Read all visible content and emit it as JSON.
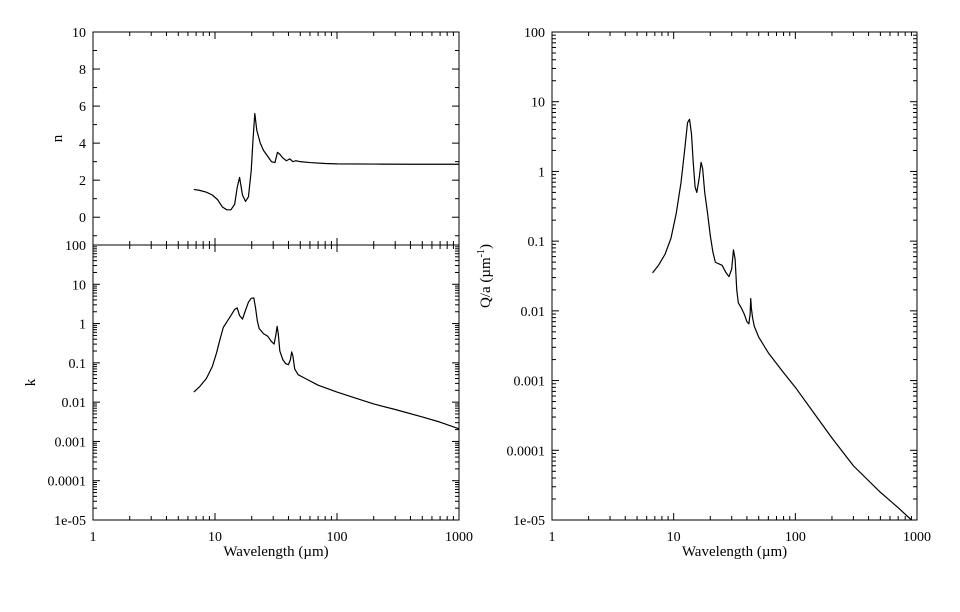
{
  "chart_data": [
    {
      "id": "n",
      "type": "line",
      "panel": "top-left",
      "title": "",
      "xlabel": "",
      "ylabel": "n",
      "xscale": "log",
      "yscale": "linear",
      "xlim": [
        1,
        1000
      ],
      "ylim": [
        -1.5,
        10
      ],
      "xticks": [
        1,
        10,
        100,
        1000
      ],
      "xtick_labels": [
        "",
        "",
        "",
        ""
      ],
      "yticks": [
        0,
        2,
        4,
        6,
        8,
        10
      ],
      "ytick_labels": [
        "0",
        "2",
        "4",
        "6",
        "8",
        "10"
      ],
      "grid": false,
      "series": [
        {
          "x": [
            6.7,
            7.5,
            8.5,
            9.5,
            10.5,
            11.5,
            12.5,
            13.5,
            14.5,
            15.2,
            15.9,
            16.8,
            17.8,
            18.8,
            19.8,
            20.5,
            21.2,
            22.0,
            23.5,
            25,
            27,
            29,
            31,
            32.5,
            34,
            36,
            38.5,
            41,
            43.5,
            46,
            50,
            60,
            80,
            100,
            200,
            400,
            1000
          ],
          "y": [
            1.5,
            1.45,
            1.35,
            1.2,
            0.95,
            0.55,
            0.4,
            0.4,
            0.7,
            1.6,
            2.15,
            1.2,
            0.85,
            1.1,
            2.5,
            4.2,
            5.6,
            4.7,
            4.0,
            3.6,
            3.3,
            3.0,
            2.95,
            3.5,
            3.4,
            3.2,
            3.05,
            3.15,
            3.0,
            3.05,
            3.0,
            2.95,
            2.9,
            2.88,
            2.87,
            2.86,
            2.86
          ]
        }
      ]
    },
    {
      "id": "k",
      "type": "line",
      "panel": "bottom-left",
      "title": "",
      "xlabel": "Wavelength (µm)",
      "ylabel": "k",
      "xscale": "log",
      "yscale": "log",
      "xlim": [
        1,
        1000
      ],
      "ylim": [
        1e-05,
        100
      ],
      "xticks": [
        1,
        10,
        100,
        1000
      ],
      "xtick_labels": [
        "1",
        "10",
        "100",
        "1000"
      ],
      "yticks": [
        1e-05,
        0.0001,
        0.001,
        0.01,
        0.1,
        1,
        10,
        100
      ],
      "ytick_labels": [
        "1e-05",
        "0.0001",
        "0.001",
        "0.01",
        "0.1",
        "1",
        "10",
        "100"
      ],
      "grid": false,
      "series": [
        {
          "x": [
            6.7,
            7.5,
            8.5,
            9.5,
            10.3,
            11.0,
            11.7,
            12.5,
            13.5,
            14.5,
            15.2,
            15.9,
            16.8,
            17.8,
            18.8,
            19.8,
            20.8,
            21.5,
            22.2,
            23,
            25,
            27,
            29,
            30.5,
            31.5,
            32.3,
            33,
            34,
            36,
            38,
            40,
            41.5,
            42.5,
            43.5,
            45,
            48,
            55,
            70,
            100,
            150,
            200,
            300,
            500,
            700,
            1000
          ],
          "y": [
            0.018,
            0.025,
            0.04,
            0.08,
            0.18,
            0.4,
            0.8,
            1.1,
            1.6,
            2.3,
            2.5,
            1.6,
            1.3,
            2.2,
            3.5,
            4.4,
            4.5,
            2.5,
            1.2,
            0.75,
            0.55,
            0.48,
            0.35,
            0.3,
            0.5,
            0.85,
            0.55,
            0.2,
            0.12,
            0.095,
            0.09,
            0.12,
            0.19,
            0.15,
            0.07,
            0.05,
            0.04,
            0.027,
            0.018,
            0.012,
            0.009,
            0.0065,
            0.0042,
            0.0031,
            0.0021
          ]
        }
      ]
    },
    {
      "id": "q",
      "type": "line",
      "panel": "right",
      "title": "",
      "xlabel": "Wavelength (µm)",
      "ylabel_main": "Q/a (µm",
      "ylabel_sup": "-1",
      "ylabel_close": ")",
      "xscale": "log",
      "yscale": "log",
      "xlim": [
        1,
        1000
      ],
      "ylim": [
        1e-05,
        100
      ],
      "xticks": [
        1,
        10,
        100,
        1000
      ],
      "xtick_labels": [
        "1",
        "10",
        "100",
        "1000"
      ],
      "yticks": [
        1e-05,
        0.0001,
        0.001,
        0.01,
        0.1,
        1,
        10,
        100
      ],
      "ytick_labels": [
        "1e-05",
        "0.0001",
        "0.001",
        "0.01",
        "0.1",
        "1",
        "10",
        "100"
      ],
      "grid": false,
      "series": [
        {
          "x": [
            6.7,
            7.5,
            8.5,
            9.5,
            10.5,
            11.5,
            12.3,
            13.0,
            13.5,
            14.0,
            14.5,
            15.0,
            15.5,
            16.2,
            16.8,
            17.3,
            18.0,
            19.0,
            20.0,
            21.0,
            22.0,
            23.0,
            25.0,
            27.0,
            28.5,
            30.0,
            31.0,
            32.0,
            33.0,
            34.0,
            36.0,
            38.0,
            40.0,
            41.5,
            42.5,
            43.0,
            43.5,
            44.5,
            46.0,
            50.0,
            60.0,
            80.0,
            100,
            150,
            200,
            300,
            500,
            700,
            900
          ],
          "y": [
            0.035,
            0.045,
            0.065,
            0.11,
            0.25,
            0.7,
            2.0,
            5.0,
            5.6,
            3.5,
            1.3,
            0.6,
            0.5,
            0.8,
            1.35,
            1.1,
            0.5,
            0.25,
            0.12,
            0.07,
            0.05,
            0.048,
            0.045,
            0.035,
            0.031,
            0.04,
            0.075,
            0.055,
            0.02,
            0.013,
            0.011,
            0.009,
            0.007,
            0.0065,
            0.009,
            0.015,
            0.011,
            0.008,
            0.006,
            0.0042,
            0.0025,
            0.0013,
            0.0008,
            0.0003,
            0.00015,
            6e-05,
            2.5e-05,
            1.5e-05,
            1e-05
          ]
        }
      ]
    }
  ]
}
